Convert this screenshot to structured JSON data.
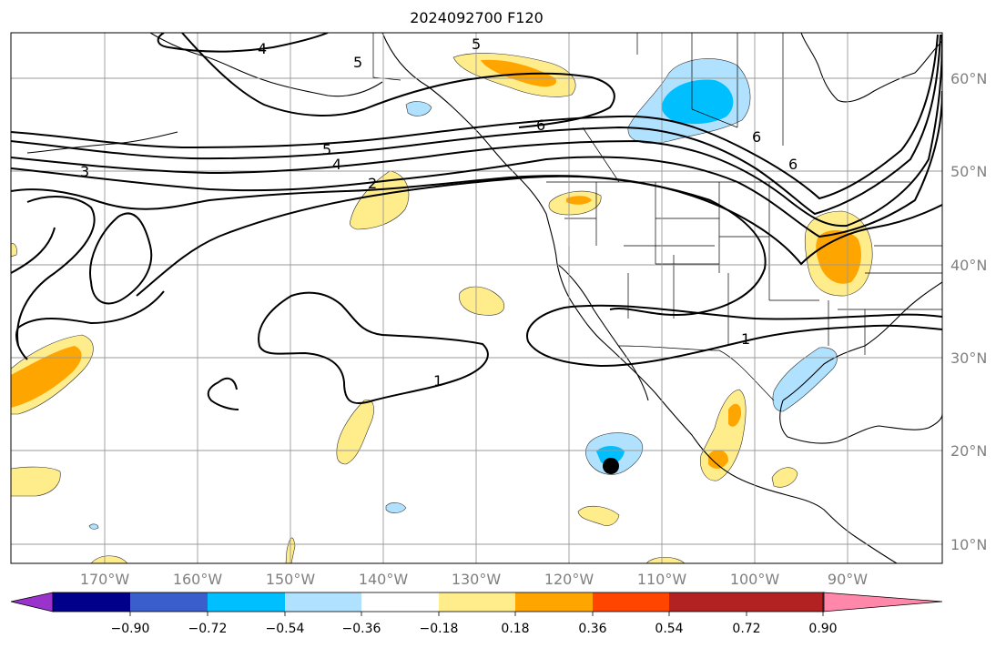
{
  "title": "2024092700 F120",
  "longitude_labels": [
    "170°W",
    "160°W",
    "150°W",
    "140°W",
    "130°W",
    "120°W",
    "110°W",
    "100°W",
    "90°W"
  ],
  "latitude_labels": [
    "60°N",
    "50°N",
    "40°N",
    "30°N",
    "20°N",
    "10°N"
  ],
  "colorbar": {
    "tick_labels": [
      "−0.90",
      "−0.72",
      "−0.54",
      "−0.36",
      "−0.18",
      "0.18",
      "0.36",
      "0.54",
      "0.72",
      "0.90"
    ],
    "colors": [
      "#9933cc",
      "#00008b",
      "#3a5fcd",
      "#00bfff",
      "#b0e2ff",
      "#ffffff",
      "#ffec8b",
      "#ffa500",
      "#ff4500",
      "#b22222",
      "#ff88aa"
    ]
  },
  "contour_labels": [
    "4",
    "5",
    "5",
    "6",
    "5",
    "4",
    "3",
    "2",
    "6",
    "6",
    "1",
    "1"
  ],
  "fill_colors": {
    "light_yellow": "#ffec8b",
    "orange": "#ffa500",
    "light_blue": "#b0e2ff",
    "deep_sky_blue": "#00bfff"
  },
  "marker_color": "#000000"
}
